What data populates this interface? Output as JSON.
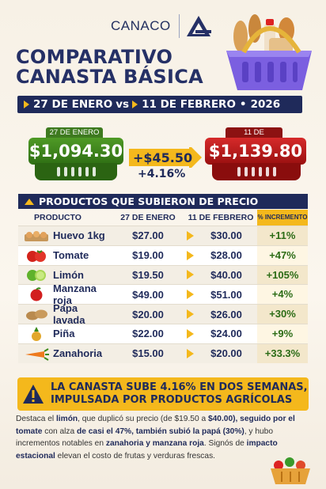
{
  "header": {
    "logo_text": "CANACO"
  },
  "title": {
    "line1": "COMPARATIVO",
    "line2": "CANASTA BÁSICA"
  },
  "dates": {
    "from": "27 DE ENERO",
    "vs": "vs",
    "to": "11 DE FEBRERO",
    "sep": "•",
    "year": "2026"
  },
  "totals": {
    "jan_label": "27 DE ENERO",
    "jan_value": "$1,094.30",
    "feb_label": "11 DE FEBRERO",
    "feb_value": "$1,139.80",
    "diff_amount": "+$45.50",
    "diff_percent": "+4.16%"
  },
  "section_title": "PRODUCTOS QUE SUBIERON DE PRECIO",
  "table": {
    "headers": {
      "product": "PRODUCTO",
      "jan": "27 DE ENERO",
      "feb": "11 DE FEBRERO",
      "inc": "% INCREMENTO"
    },
    "rows": [
      {
        "icon": "eggs-icon",
        "name": "Huevo 1kg",
        "jan": "$27.00",
        "feb": "$30.00",
        "inc": "+11%"
      },
      {
        "icon": "tomato-icon",
        "name": "Tomate",
        "jan": "$19.00",
        "feb": "$28.00",
        "inc": "+47%"
      },
      {
        "icon": "lime-icon",
        "name": "Limón",
        "jan": "$19.50",
        "feb": "$40.00",
        "inc": "+105%"
      },
      {
        "icon": "apple-icon",
        "name": "Manzana roja",
        "jan": "$49.00",
        "feb": "$51.00",
        "inc": "+4%"
      },
      {
        "icon": "potato-icon",
        "name": "Papa lavada",
        "jan": "$20.00",
        "feb": "$26.00",
        "inc": "+30%"
      },
      {
        "icon": "pineapple-icon",
        "name": "Piña",
        "jan": "$22.00",
        "feb": "$24.00",
        "inc": "+9%"
      },
      {
        "icon": "carrot-icon",
        "name": "Zanahoria",
        "jan": "$15.00",
        "feb": "$20.00",
        "inc": "+33.3%"
      }
    ]
  },
  "alert": {
    "line1": "LA CANASTA SUBE 4.16% EN DOS SEMANAS,",
    "line2": "IMPULSADA POR PRODUCTOS AGRÍCOLAS"
  },
  "summary": {
    "p1": "Destaca el ",
    "b1": "limón",
    "p2": ", que duplicó su precio (de $19.50 a ",
    "b2": "$40.00), seguido por el tomate",
    "p3": " con alza ",
    "b3": "de casi el 47%, también subió la papá (30%)",
    "p4": ", y hubo incrementos notables en ",
    "b4": "zanahoria y manzana roja",
    "p5": ". Signós de ",
    "b5": "impacto estacional",
    "p6": " elevan el costo de frutas y verduras frescas."
  },
  "colors": {
    "navy": "#1f2a5a",
    "yellow": "#f4b81c",
    "green": "#3e7a1f",
    "red": "#b41616"
  }
}
